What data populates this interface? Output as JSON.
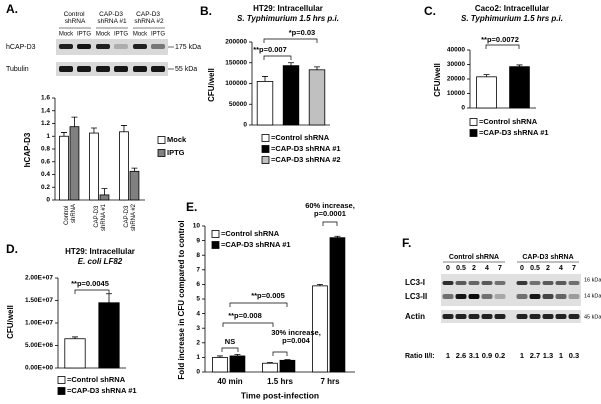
{
  "chart_data": [
    {
      "panel": "A.",
      "type": "bar",
      "ylabel": "hCAP-D3",
      "categories": [
        "Control shRNA",
        "CAP-D3 shRNA #1",
        "CAP-D3 shRNA #2"
      ],
      "series": [
        {
          "name": "Mock",
          "color": "#ffffff",
          "values": [
            1.0,
            1.05,
            1.07
          ],
          "errors": [
            0.06,
            0.08,
            0.1
          ]
        },
        {
          "name": "IPTG",
          "color": "#808080",
          "values": [
            1.15,
            0.08,
            0.45
          ],
          "errors": [
            0.15,
            0.1,
            0.05
          ]
        }
      ],
      "ylim": [
        0,
        1.6
      ],
      "yticks": [
        0,
        0.2,
        0.4,
        0.6,
        0.8,
        1,
        1.2,
        1.4,
        1.6
      ],
      "legend": "right",
      "blot": {
        "groups": [
          "Control shRNA",
          "CAP-D3 shRNA #1",
          "CAP-D3 shRNA #2"
        ],
        "lanes": [
          "Mock",
          "IPTG",
          "Mock",
          "IPTG",
          "Mock",
          "IPTG"
        ],
        "rows": [
          "hCAP-D3",
          "Tubulin"
        ],
        "markers": [
          "175 kDa",
          "55 kDa"
        ]
      }
    },
    {
      "panel": "B.",
      "type": "bar",
      "title": "HT29: Intracellular",
      "subtitle": "S. Typhimurium 1.5 hrs p.i.",
      "ylabel": "CFU/well",
      "series": [
        {
          "name": "=Control shRNA",
          "color": "#ffffff",
          "values": [
            105000
          ],
          "errors": [
            12000
          ]
        },
        {
          "name": "=CAP-D3 shRNA #1",
          "color": "#000000",
          "values": [
            143000
          ],
          "errors": [
            7000
          ]
        },
        {
          "name": "=CAP-D3 shRNA #2",
          "color": "#c0c0c0",
          "values": [
            133000
          ],
          "errors": [
            7000
          ]
        }
      ],
      "ylim": [
        0,
        200000
      ],
      "yticks": [
        0,
        50000,
        100000,
        150000,
        200000
      ],
      "annotations": [
        "**p=0.007",
        "*p=0.03"
      ],
      "legend": "below"
    },
    {
      "panel": "C.",
      "type": "bar",
      "title": "Caco2: Intracellular",
      "subtitle": "S. Typhimurium 1.5 hrs p.i.",
      "ylabel": "CFU/well",
      "series": [
        {
          "name": "=Control shRNA",
          "color": "#ffffff",
          "values": [
            21500
          ],
          "errors": [
            1500
          ]
        },
        {
          "name": "=CAP-D3 shRNA #1",
          "color": "#000000",
          "values": [
            28500
          ],
          "errors": [
            1200
          ]
        }
      ],
      "ylim": [
        0,
        40000
      ],
      "yticks": [
        0,
        10000,
        20000,
        30000,
        40000
      ],
      "annotations": [
        "**p=0.0072"
      ],
      "legend": "below"
    },
    {
      "panel": "D.",
      "type": "bar",
      "title": "HT29: Intracellular",
      "subtitle": "E. coli LF82",
      "ylabel": "CFU/well",
      "series": [
        {
          "name": "=Control shRNA",
          "color": "#ffffff",
          "values": [
            6500000
          ],
          "errors": [
            400000
          ]
        },
        {
          "name": "=CAP-D3 shRNA #1",
          "color": "#000000",
          "values": [
            14500000
          ],
          "errors": [
            2000000
          ]
        }
      ],
      "ylim": [
        0,
        20000000
      ],
      "yticks": [
        {
          "value": 0,
          "label": "0.00E+00"
        },
        {
          "value": 5000000,
          "label": "5.00E+06"
        },
        {
          "value": 10000000,
          "label": "1.00E+07"
        },
        {
          "value": 15000000,
          "label": "1.50E+07"
        },
        {
          "value": 20000000,
          "label": "2.00E+07"
        }
      ],
      "annotations": [
        "**p=0.0045"
      ],
      "legend": "below"
    },
    {
      "panel": "E.",
      "type": "bar",
      "ylabel": "Fold increase in CFU compared to control",
      "xlabel": "Time post-infection",
      "categories": [
        "40 min",
        "1.5 hrs",
        "7 hrs"
      ],
      "series": [
        {
          "name": "=Control shRNA",
          "color": "#ffffff",
          "values": [
            1.0,
            0.6,
            5.9
          ],
          "errors": [
            0.1,
            0.05,
            0.1
          ]
        },
        {
          "name": "=CAP-D3 shRNA #1",
          "color": "#000000",
          "values": [
            1.1,
            0.8,
            9.2
          ],
          "errors": [
            0.1,
            0.05,
            0.1
          ]
        }
      ],
      "ylim": [
        0,
        10
      ],
      "yticks": [
        0,
        1,
        2,
        3,
        4,
        5,
        6,
        7,
        8,
        9,
        10
      ],
      "annotations": [
        "NS",
        "**p=0.008",
        "**p=0.005",
        "30% increase,",
        "p=0.004",
        "60% increase,",
        "p=0.0001"
      ],
      "legend": "top-left"
    }
  ],
  "blot_f": {
    "panel": "F.",
    "groups": [
      "Control shRNA",
      "CAP-D3 shRNA"
    ],
    "lanes": [
      "0",
      "0.5",
      "2",
      "4",
      "7",
      "0",
      "0.5",
      "2",
      "4",
      "7"
    ],
    "rows": [
      "LC3-I",
      "LC3-II",
      "Actin"
    ],
    "markers": [
      "16 kDa",
      "14 kDa",
      "45 kDa"
    ],
    "ratio_label": "Ratio II/I:",
    "ratios": [
      1,
      2.6,
      3.1,
      0.9,
      0.2,
      1,
      2.7,
      1.3,
      1,
      0.3
    ]
  }
}
